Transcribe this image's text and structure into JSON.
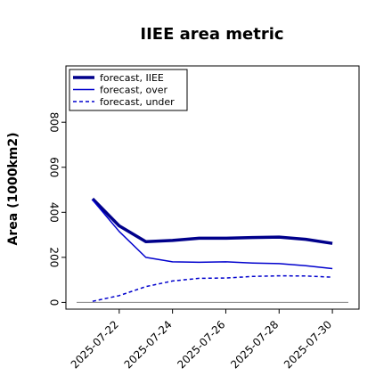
{
  "chart_data": {
    "type": "line",
    "title": "IIEE area metric",
    "xlabel": "",
    "ylabel": "Area (1000km2)",
    "x": [
      "2025-07-21",
      "2025-07-22",
      "2025-07-23",
      "2025-07-24",
      "2025-07-25",
      "2025-07-26",
      "2025-07-27",
      "2025-07-28",
      "2025-07-29",
      "2025-07-30"
    ],
    "x_ticks": [
      "2025-07-22",
      "2025-07-24",
      "2025-07-26",
      "2025-07-28",
      "2025-07-30"
    ],
    "highlighted_tick": "2025-07-22",
    "highlight_color": "#228b22",
    "y_ticks": [
      0,
      200,
      400,
      600,
      800
    ],
    "ylim": [
      -30,
      1050
    ],
    "xlim": [
      "2025-07-20",
      "2025-07-31"
    ],
    "grid": false,
    "legend_position": "top-left",
    "zero_line": true,
    "series": [
      {
        "name": "forecast, IIEE",
        "color": "#00008b",
        "style": "solid",
        "width": "thick",
        "values": [
          460,
          340,
          270,
          275,
          285,
          285,
          288,
          290,
          280,
          262
        ]
      },
      {
        "name": "forecast, over",
        "color": "#0000cd",
        "style": "solid",
        "width": "thin",
        "values": [
          455,
          315,
          200,
          180,
          178,
          180,
          175,
          172,
          163,
          150
        ]
      },
      {
        "name": "forecast, under",
        "color": "#0000cd",
        "style": "dashed",
        "width": "thin",
        "values": [
          5,
          30,
          70,
          95,
          107,
          108,
          115,
          118,
          117,
          112
        ]
      }
    ]
  }
}
